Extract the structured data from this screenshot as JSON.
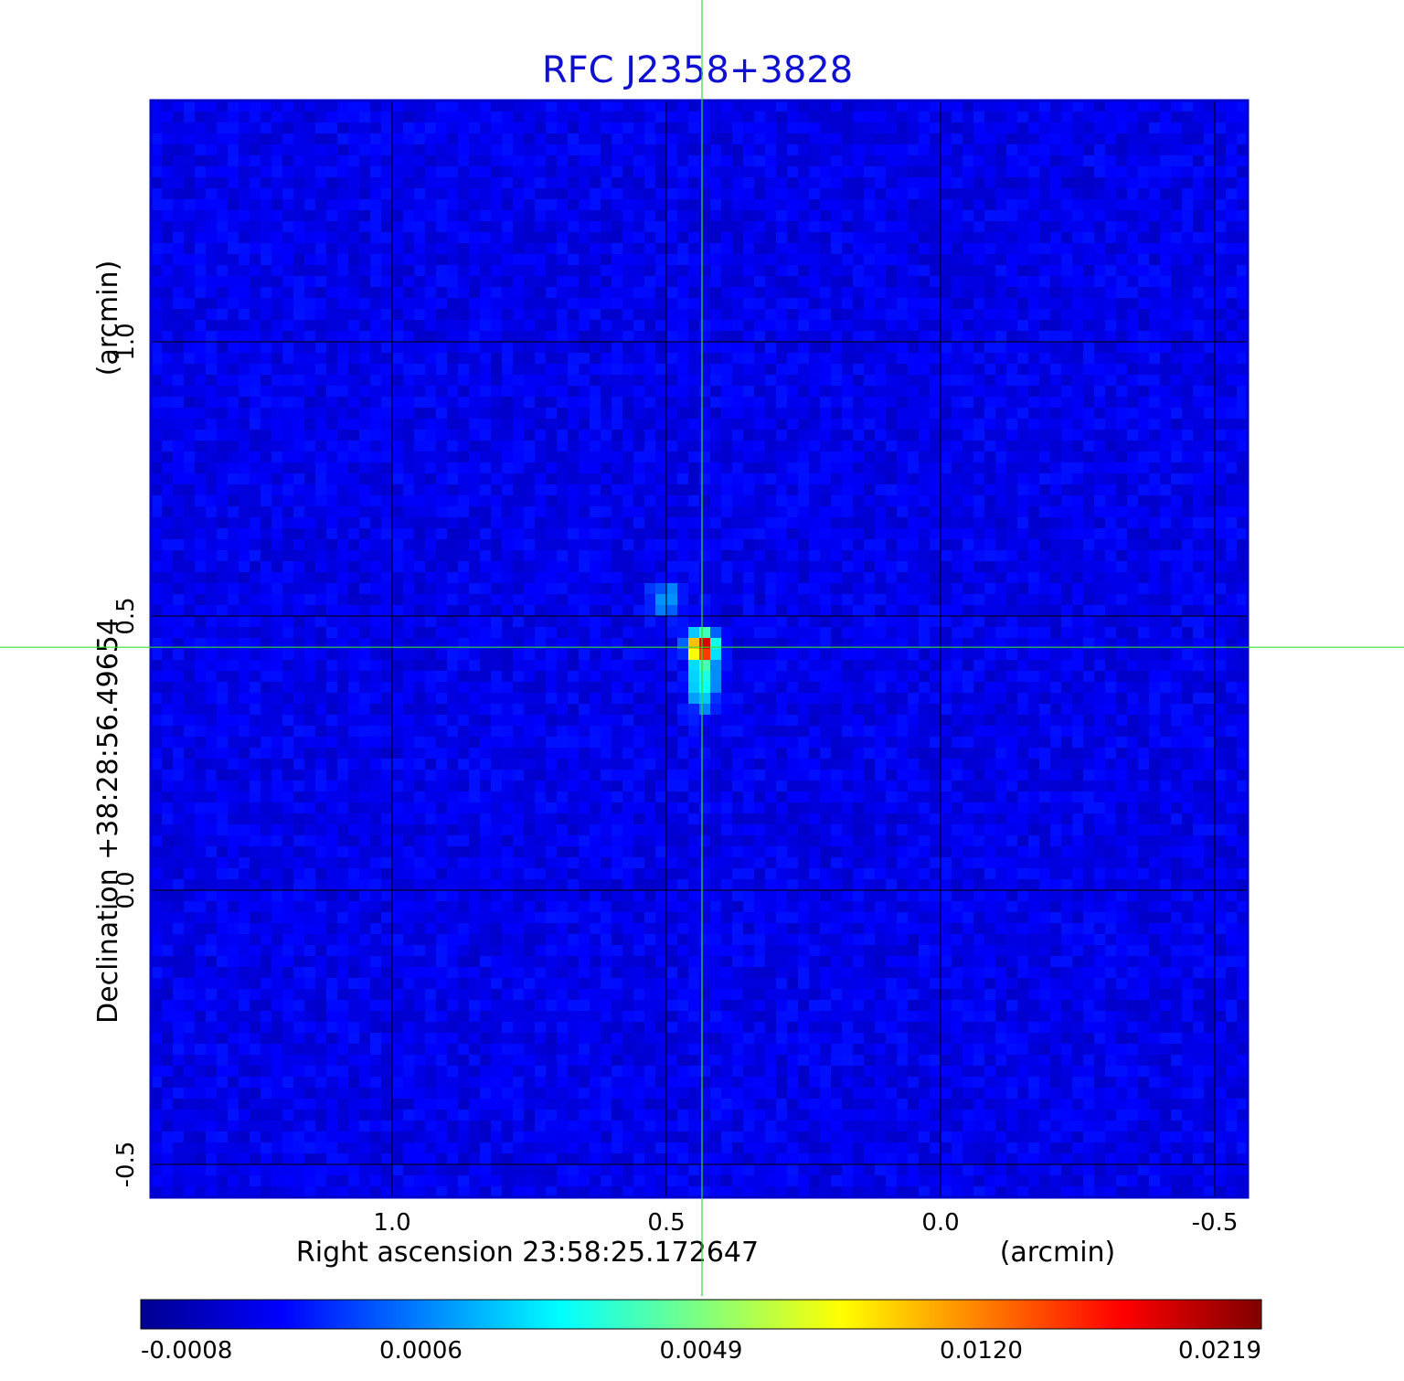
{
  "chart_data": {
    "type": "heatmap",
    "title": "RFC J2358+3828",
    "title_color": "#1010d0",
    "xlabel": "Right ascension  23:58:25.172647",
    "xlabel_unit": "(arcmin)",
    "ylabel": "Declination  +38:28:56.49654",
    "ylabel_unit": "(arcmin)",
    "xlim": [
      1.44,
      -0.56
    ],
    "ylim": [
      -0.56,
      1.44
    ],
    "x_ticks": [
      {
        "value": 1.0,
        "label": "1.0"
      },
      {
        "value": 0.5,
        "label": "0.5"
      },
      {
        "value": 0.0,
        "label": "0.0"
      },
      {
        "value": -0.5,
        "label": "-0.5"
      }
    ],
    "y_ticks": [
      {
        "value": 1.0,
        "label": "1.0"
      },
      {
        "value": 0.5,
        "label": "0.5"
      },
      {
        "value": 0.0,
        "label": "0.0"
      },
      {
        "value": -0.5,
        "label": "-0.5"
      }
    ],
    "grid": true,
    "crosshair": {
      "x": 0.435,
      "y": 0.443,
      "color": "#33dd33"
    },
    "colormap": "jet",
    "colorbar": {
      "ticks": [
        "-0.0008",
        "0.0006",
        "0.0049",
        "0.0120",
        "0.0219"
      ],
      "min": -0.0008,
      "max": 0.0219
    },
    "peak": {
      "x": 0.435,
      "y": 0.443,
      "value": 0.0219
    },
    "secondary_component": {
      "x": 0.5,
      "y": 0.53,
      "value": 0.0012
    },
    "noise_level": 0.0002,
    "background_level": -0.0002
  }
}
